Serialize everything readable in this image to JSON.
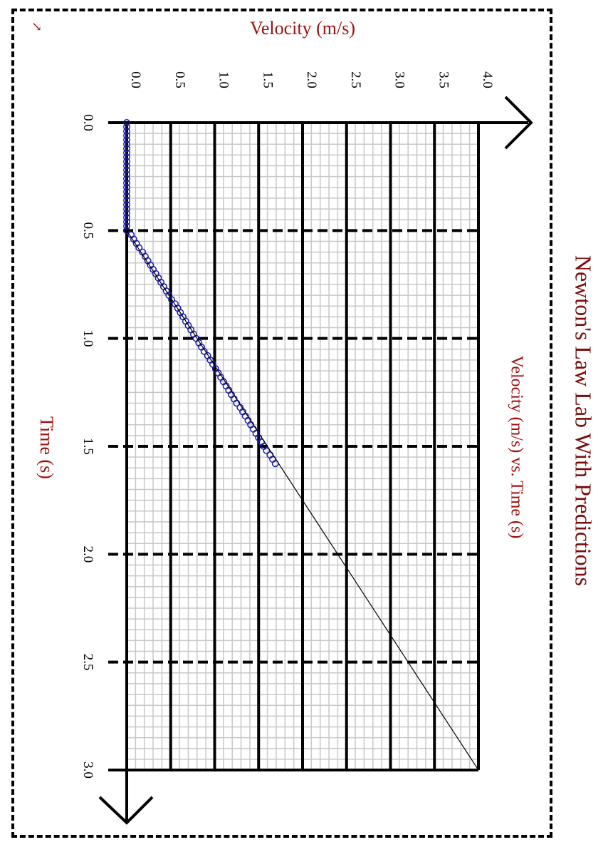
{
  "header": {
    "title": "Newton's Law Lab With Predictions",
    "corner_glyph": "↘"
  },
  "chart_data": {
    "type": "scatter",
    "title": "Velocity (m/s) vs. Time (s)",
    "xlabel": "Time (s)",
    "ylabel": "Velocity (m/s)",
    "xlim": [
      0,
      3.0
    ],
    "ylim": [
      0,
      4.0
    ],
    "x_ticks": [
      "0.0",
      "0.5",
      "1.0",
      "1.5",
      "2.0",
      "2.5",
      "3.0"
    ],
    "y_ticks": [
      "0.0",
      "0.5",
      "1.0",
      "1.5",
      "2.0",
      "2.5",
      "3.0",
      "3.5",
      "4.0"
    ],
    "grid": true,
    "orientation": "rotated-90",
    "series": [
      {
        "kind": "measured",
        "marker": "circle",
        "color": "#1a1aa8",
        "points": [
          [
            0.0,
            0.0
          ],
          [
            0.02,
            0.0
          ],
          [
            0.04,
            0.0
          ],
          [
            0.06,
            0.0
          ],
          [
            0.08,
            0.0
          ],
          [
            0.1,
            0.0
          ],
          [
            0.12,
            0.0
          ],
          [
            0.14,
            0.0
          ],
          [
            0.16,
            0.0
          ],
          [
            0.18,
            0.0
          ],
          [
            0.2,
            0.0
          ],
          [
            0.22,
            0.0
          ],
          [
            0.24,
            0.0
          ],
          [
            0.26,
            0.0
          ],
          [
            0.28,
            0.0
          ],
          [
            0.3,
            0.0
          ],
          [
            0.32,
            0.0
          ],
          [
            0.34,
            0.0
          ],
          [
            0.36,
            0.0
          ],
          [
            0.38,
            0.0
          ],
          [
            0.4,
            0.0
          ],
          [
            0.42,
            0.0
          ],
          [
            0.44,
            0.0
          ],
          [
            0.46,
            0.0
          ],
          [
            0.48,
            0.0
          ],
          [
            0.5,
            0.0
          ],
          [
            0.52,
            0.05
          ],
          [
            0.54,
            0.08
          ],
          [
            0.56,
            0.11
          ],
          [
            0.58,
            0.14
          ],
          [
            0.6,
            0.18
          ],
          [
            0.62,
            0.21
          ],
          [
            0.64,
            0.24
          ],
          [
            0.66,
            0.27
          ],
          [
            0.68,
            0.3
          ],
          [
            0.7,
            0.33
          ],
          [
            0.72,
            0.36
          ],
          [
            0.74,
            0.39
          ],
          [
            0.76,
            0.42
          ],
          [
            0.78,
            0.45
          ],
          [
            0.8,
            0.48
          ],
          [
            0.82,
            0.51
          ],
          [
            0.84,
            0.55
          ],
          [
            0.86,
            0.58
          ],
          [
            0.88,
            0.61
          ],
          [
            0.9,
            0.64
          ],
          [
            0.92,
            0.67
          ],
          [
            0.94,
            0.7
          ],
          [
            0.96,
            0.73
          ],
          [
            0.98,
            0.76
          ],
          [
            1.0,
            0.79
          ],
          [
            1.02,
            0.82
          ],
          [
            1.04,
            0.85
          ],
          [
            1.06,
            0.88
          ],
          [
            1.08,
            0.92
          ],
          [
            1.1,
            0.95
          ],
          [
            1.12,
            0.98
          ],
          [
            1.14,
            1.01
          ],
          [
            1.16,
            1.04
          ],
          [
            1.18,
            1.07
          ],
          [
            1.2,
            1.1
          ],
          [
            1.22,
            1.13
          ],
          [
            1.24,
            1.16
          ],
          [
            1.26,
            1.19
          ],
          [
            1.28,
            1.22
          ],
          [
            1.3,
            1.25
          ],
          [
            1.32,
            1.29
          ],
          [
            1.34,
            1.32
          ],
          [
            1.36,
            1.35
          ],
          [
            1.38,
            1.38
          ],
          [
            1.4,
            1.41
          ],
          [
            1.42,
            1.44
          ],
          [
            1.44,
            1.47
          ],
          [
            1.46,
            1.5
          ],
          [
            1.48,
            1.53
          ],
          [
            1.5,
            1.56
          ],
          [
            1.52,
            1.59
          ],
          [
            1.54,
            1.63
          ],
          [
            1.56,
            1.66
          ],
          [
            1.58,
            1.69
          ]
        ]
      },
      {
        "kind": "prediction",
        "marker": "line",
        "color": "#000000",
        "points": [
          [
            0.5,
            0.0
          ],
          [
            3.0,
            4.0
          ]
        ]
      }
    ]
  }
}
